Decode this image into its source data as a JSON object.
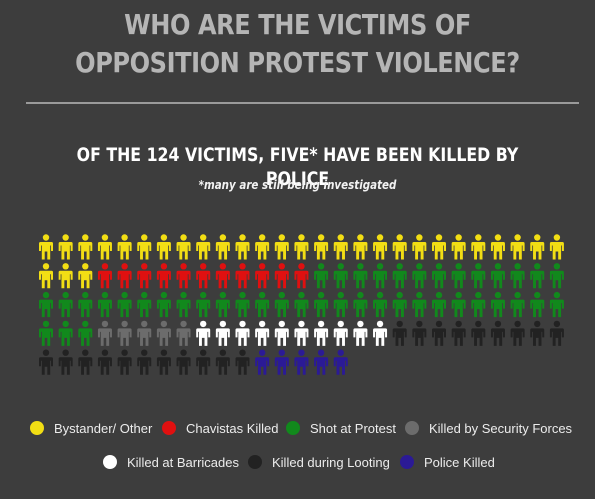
{
  "header": {
    "title_line1": "WHO ARE THE VICTIMS OF",
    "title_line2": "OPPOSITION PROTEST VIOLENCE?",
    "subtitle": "OF THE 124 VICTIMS, FIVE* HAVE BEEN KILLED BY POLICE",
    "note": "*many are still being investigated"
  },
  "chart_data": {
    "type": "pictograph",
    "unit": "victim",
    "total": 124,
    "per_row": 27,
    "categories": [
      {
        "name": "Bystander/ Other",
        "count": 30,
        "color": "#f2de14",
        "icon": "person-icon"
      },
      {
        "name": "Chavistas Killed",
        "count": 11,
        "color": "#e01010",
        "icon": "person-icon"
      },
      {
        "name": "Shot at Protest",
        "count": 43,
        "color": "#11891c",
        "icon": "person-icon"
      },
      {
        "name": "Killed by Security Forces",
        "count": 5,
        "color": "#6c6c6c",
        "icon": "person-icon"
      },
      {
        "name": "Killed at Barricades",
        "count": 10,
        "color": "#ffffff",
        "icon": "person-icon"
      },
      {
        "name": "Killed during Looting",
        "count": 20,
        "color": "#222222",
        "icon": "person-icon"
      },
      {
        "name": "Police Killed",
        "count": 5,
        "color": "#2b1a96",
        "icon": "person-icon"
      }
    ]
  }
}
